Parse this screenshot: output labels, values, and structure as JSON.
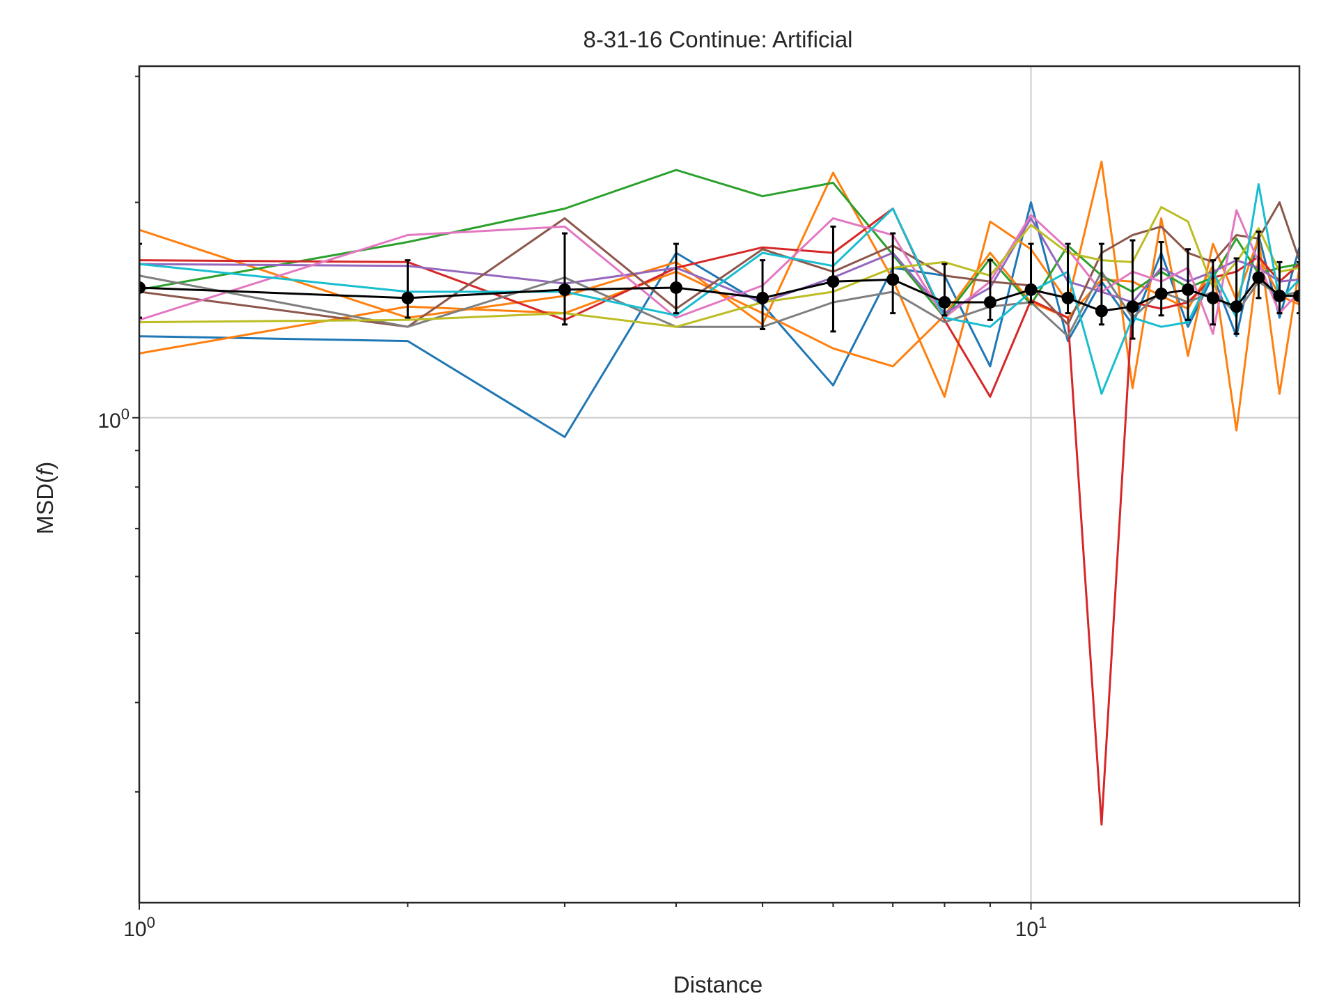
{
  "chart_data": {
    "type": "line",
    "title": "8-31-16 Continue: Artificial",
    "xlabel": "Distance",
    "ylabel_text": "MSD(",
    "ylabel_var": "f",
    "ylabel_close": ")",
    "x_scale": "log",
    "y_scale": "log",
    "xlim": [
      1,
      20
    ],
    "ylim": [
      0.21,
      3.1
    ],
    "grid": true,
    "x_tick_labels": [
      {
        "base": "10",
        "exp": "0",
        "value": 1
      },
      {
        "base": "10",
        "exp": "1",
        "value": 10
      }
    ],
    "y_tick_labels": [
      {
        "base": "10",
        "exp": "0",
        "value": 1
      }
    ],
    "x": [
      1,
      2,
      3,
      4,
      5,
      6,
      7,
      8,
      9,
      10,
      11,
      12,
      13,
      14,
      15,
      16,
      17,
      18,
      19,
      20
    ],
    "series": [
      {
        "color": "#1f77b4",
        "values": [
          1.3,
          1.28,
          0.94,
          1.7,
          1.44,
          1.11,
          1.62,
          1.58,
          1.18,
          2.0,
          1.28,
          1.55,
          1.35,
          1.7,
          1.34,
          1.58,
          1.3,
          1.8,
          1.38,
          1.73
        ]
      },
      {
        "color": "#ff7f0e",
        "values": [
          1.83,
          1.38,
          1.48,
          1.65,
          1.35,
          2.2,
          1.56,
          1.07,
          1.88,
          1.72,
          1.45,
          2.28,
          1.1,
          1.9,
          1.22,
          1.75,
          1.46,
          1.78,
          1.08,
          1.62
        ]
      },
      {
        "color": "#ff7f0e",
        "values": [
          1.23,
          1.43,
          1.4,
          1.6,
          1.4,
          1.25,
          1.18,
          1.39,
          1.7,
          1.45,
          1.38,
          1.56,
          1.55,
          1.48,
          1.42,
          1.63,
          0.96,
          1.68,
          1.48,
          1.44
        ]
      },
      {
        "color": "#2ca02c",
        "values": [
          1.51,
          1.76,
          1.96,
          2.22,
          2.04,
          2.13,
          1.69,
          1.38,
          1.67,
          1.44,
          1.74,
          1.58,
          1.5,
          1.6,
          1.52,
          1.57,
          1.78,
          1.59,
          1.62,
          1.64
        ]
      },
      {
        "color": "#d62728",
        "values": [
          1.66,
          1.65,
          1.37,
          1.62,
          1.73,
          1.7,
          1.96,
          1.37,
          1.07,
          1.46,
          1.38,
          0.27,
          1.45,
          1.42,
          1.45,
          1.57,
          1.6,
          1.68,
          1.55,
          1.64
        ]
      },
      {
        "color": "#9467bd",
        "values": [
          1.64,
          1.63,
          1.54,
          1.62,
          1.45,
          1.57,
          1.7,
          1.4,
          1.52,
          1.9,
          1.55,
          1.5,
          1.45,
          1.62,
          1.55,
          1.6,
          1.66,
          1.62,
          1.55,
          1.56
        ]
      },
      {
        "color": "#8c564b",
        "values": [
          1.5,
          1.34,
          1.9,
          1.42,
          1.72,
          1.6,
          1.74,
          1.58,
          1.55,
          1.53,
          1.35,
          1.7,
          1.8,
          1.85,
          1.7,
          1.65,
          1.8,
          1.78,
          2.0,
          1.66
        ]
      },
      {
        "color": "#e377c2",
        "values": [
          1.37,
          1.8,
          1.85,
          1.38,
          1.53,
          1.9,
          1.8,
          1.38,
          1.55,
          1.92,
          1.72,
          1.5,
          1.6,
          1.55,
          1.62,
          1.31,
          1.95,
          1.65,
          1.4,
          1.5
        ]
      },
      {
        "color": "#7f7f7f",
        "values": [
          1.58,
          1.34,
          1.57,
          1.34,
          1.34,
          1.45,
          1.5,
          1.36,
          1.43,
          1.45,
          1.3,
          1.6,
          1.38,
          1.5,
          1.45,
          1.5,
          1.4,
          1.55,
          1.48,
          1.5
        ]
      },
      {
        "color": "#bcbd22",
        "values": [
          1.36,
          1.37,
          1.4,
          1.34,
          1.45,
          1.5,
          1.62,
          1.65,
          1.58,
          1.86,
          1.7,
          1.66,
          1.65,
          1.97,
          1.88,
          1.52,
          1.65,
          1.84,
          1.6,
          1.62
        ]
      },
      {
        "color": "#17becf",
        "values": [
          1.64,
          1.5,
          1.5,
          1.39,
          1.7,
          1.63,
          1.96,
          1.38,
          1.34,
          1.5,
          1.6,
          1.08,
          1.38,
          1.34,
          1.36,
          1.6,
          1.38,
          2.12,
          1.46,
          1.56
        ]
      },
      {
        "color": "#000000",
        "name_hidden": true,
        "marker": "circle",
        "errorbars": true,
        "values": [
          1.52,
          1.47,
          1.51,
          1.52,
          1.47,
          1.55,
          1.56,
          1.45,
          1.45,
          1.51,
          1.47,
          1.41,
          1.43,
          1.49,
          1.51,
          1.47,
          1.43,
          1.57,
          1.48,
          1.48
        ],
        "err_low": [
          1.38,
          1.38,
          1.35,
          1.4,
          1.33,
          1.32,
          1.4,
          1.39,
          1.37,
          1.45,
          1.4,
          1.35,
          1.29,
          1.39,
          1.37,
          1.35,
          1.31,
          1.47,
          1.4,
          1.4
        ],
        "err_high": [
          1.75,
          1.66,
          1.81,
          1.75,
          1.66,
          1.85,
          1.81,
          1.64,
          1.66,
          1.75,
          1.75,
          1.75,
          1.77,
          1.76,
          1.72,
          1.66,
          1.67,
          1.82,
          1.65,
          1.65
        ]
      }
    ]
  }
}
